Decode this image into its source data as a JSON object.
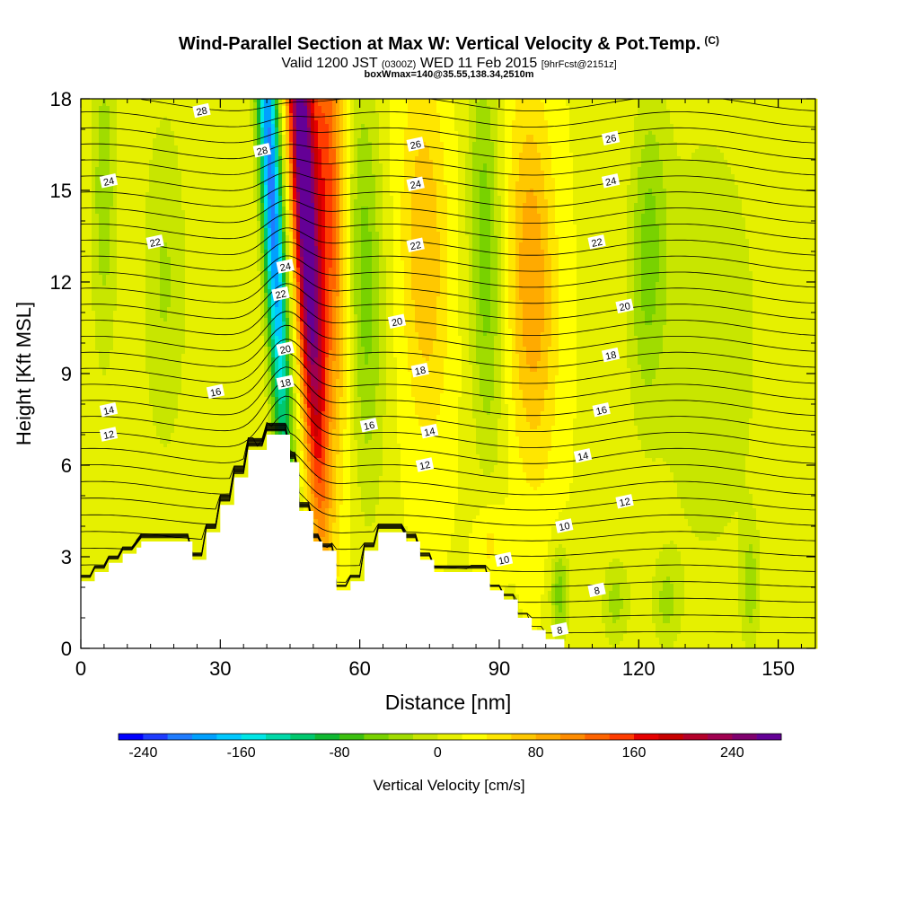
{
  "header": {
    "title": "Wind-Parallel Section at Max W: Vertical Velocity & Pot.Temp.",
    "copyright": "(C)",
    "valid_a": "Valid 1200 JST",
    "valid_b": "(0300Z)",
    "valid_c": "WED 11 Feb 2015",
    "valid_d": "[9hrFcst@2151z]",
    "box": "boxWmax=140@35.55,138.34,2510m"
  },
  "chart_data": {
    "type": "heatmap",
    "xlabel": "Distance [nm]",
    "ylabel": "Height [Kft MSL]",
    "xlim": [
      0,
      158
    ],
    "ylim": [
      0,
      18
    ],
    "x_ticks": [
      "0",
      "30",
      "60",
      "90",
      "120",
      "150"
    ],
    "x_tick_values": [
      0,
      30,
      60,
      90,
      120,
      150
    ],
    "y_ticks": [
      "0",
      "3",
      "6",
      "9",
      "12",
      "15",
      "18"
    ],
    "y_tick_values": [
      0,
      3,
      6,
      9,
      12,
      15,
      18
    ],
    "colorbar": {
      "label": "Vertical Velocity [cm/s]",
      "tick_labels": [
        "-240",
        "-160",
        "-80",
        "0",
        "80",
        "160",
        "240"
      ],
      "tick_values": [
        -240,
        -160,
        -80,
        0,
        80,
        160,
        240
      ],
      "range": [
        -260,
        280
      ],
      "colors": [
        "#0000ff",
        "#1e3cff",
        "#1f7cff",
        "#00a0ff",
        "#00c8ff",
        "#00e6e6",
        "#00d8a8",
        "#00c86e",
        "#10b832",
        "#3cc010",
        "#78d200",
        "#a0dc00",
        "#c8e600",
        "#e6f000",
        "#ffff00",
        "#ffe600",
        "#ffc800",
        "#ffaa00",
        "#ff8c00",
        "#ff6400",
        "#ff3c00",
        "#e60000",
        "#c80000",
        "#b4002a",
        "#a00050",
        "#80006e",
        "#640096"
      ]
    },
    "theta_contour_labels": [
      {
        "text": "28",
        "x": 26,
        "y": 17.6
      },
      {
        "text": "28",
        "x": 39,
        "y": 16.3
      },
      {
        "text": "26",
        "x": 72,
        "y": 16.5
      },
      {
        "text": "26",
        "x": 114,
        "y": 16.7
      },
      {
        "text": "24",
        "x": 6,
        "y": 15.3
      },
      {
        "text": "24",
        "x": 72,
        "y": 15.2
      },
      {
        "text": "24",
        "x": 114,
        "y": 15.3
      },
      {
        "text": "22",
        "x": 16,
        "y": 13.3
      },
      {
        "text": "22",
        "x": 72,
        "y": 13.2
      },
      {
        "text": "22",
        "x": 111,
        "y": 13.3
      },
      {
        "text": "24",
        "x": 44,
        "y": 12.5
      },
      {
        "text": "22",
        "x": 43,
        "y": 11.6
      },
      {
        "text": "20",
        "x": 68,
        "y": 10.7
      },
      {
        "text": "20",
        "x": 117,
        "y": 11.2
      },
      {
        "text": "20",
        "x": 44,
        "y": 9.8
      },
      {
        "text": "18",
        "x": 44,
        "y": 8.7
      },
      {
        "text": "18",
        "x": 73,
        "y": 9.1
      },
      {
        "text": "18",
        "x": 114,
        "y": 9.6
      },
      {
        "text": "16",
        "x": 29,
        "y": 8.4
      },
      {
        "text": "16",
        "x": 62,
        "y": 7.3
      },
      {
        "text": "16",
        "x": 112,
        "y": 7.8
      },
      {
        "text": "14",
        "x": 6,
        "y": 7.8
      },
      {
        "text": "14",
        "x": 75,
        "y": 7.1
      },
      {
        "text": "14",
        "x": 108,
        "y": 6.3
      },
      {
        "text": "12",
        "x": 6,
        "y": 7.0
      },
      {
        "text": "12",
        "x": 74,
        "y": 6.0
      },
      {
        "text": "12",
        "x": 117,
        "y": 4.8
      },
      {
        "text": "10",
        "x": 104,
        "y": 4.0
      },
      {
        "text": "10",
        "x": 91,
        "y": 2.9
      },
      {
        "text": "8",
        "x": 111,
        "y": 1.9
      },
      {
        "text": "8",
        "x": 103,
        "y": 0.6
      }
    ],
    "w_field": {
      "anomalies": [
        {
          "x": 41,
          "y": 15,
          "v": -230,
          "sx": 2.3,
          "sy": 10,
          "slope": -0.32
        },
        {
          "x": 48,
          "y": 15,
          "v": 270,
          "sx": 2.6,
          "sy": 10,
          "slope": -0.32
        },
        {
          "x": 53,
          "y": 15,
          "v": 130,
          "sx": 4,
          "sy": 8,
          "slope": -0.15
        },
        {
          "x": 61,
          "y": 12,
          "v": -70,
          "sx": 4,
          "sy": 7,
          "slope": -0.1
        },
        {
          "x": 74,
          "y": 13,
          "v": 60,
          "sx": 5,
          "sy": 6,
          "slope": -0.1
        },
        {
          "x": 87,
          "y": 13,
          "v": -70,
          "sx": 3.5,
          "sy": 7,
          "slope": -0.1
        },
        {
          "x": 97,
          "y": 12,
          "v": 80,
          "sx": 5,
          "sy": 6,
          "slope": -0.1
        },
        {
          "x": 122,
          "y": 13,
          "v": -60,
          "sx": 4,
          "sy": 5,
          "slope": 0.1
        },
        {
          "x": 5,
          "y": 15,
          "v": -50,
          "sx": 3,
          "sy": 6,
          "slope": 0
        },
        {
          "x": 18,
          "y": 12,
          "v": -40,
          "sx": 5,
          "sy": 6,
          "slope": 0
        },
        {
          "x": 135,
          "y": 10,
          "v": -35,
          "sx": 12,
          "sy": 8,
          "slope": 0
        },
        {
          "x": 103,
          "y": 1.8,
          "v": -70,
          "sx": 2,
          "sy": 1.5,
          "slope": 0
        },
        {
          "x": 88,
          "y": 3.5,
          "v": 35,
          "sx": 3,
          "sy": 1.5,
          "slope": 0
        },
        {
          "x": 115,
          "y": 1.5,
          "v": -45,
          "sx": 3,
          "sy": 1.5,
          "slope": 0
        },
        {
          "x": 126,
          "y": 1.5,
          "v": -40,
          "sx": 3,
          "sy": 1.5,
          "slope": 0
        },
        {
          "x": 144,
          "y": 2,
          "v": -45,
          "sx": 2,
          "sy": 2,
          "slope": 0
        },
        {
          "x": 40,
          "y": 4.5,
          "v": -25,
          "sx": 6,
          "sy": 2,
          "slope": 0
        }
      ]
    },
    "terrain": [
      [
        0,
        0
      ],
      [
        0,
        2.2
      ],
      [
        3,
        2.2
      ],
      [
        3,
        2.5
      ],
      [
        6,
        2.5
      ],
      [
        6,
        2.8
      ],
      [
        9,
        2.8
      ],
      [
        9,
        3.1
      ],
      [
        12,
        3.1
      ],
      [
        12,
        3.3
      ],
      [
        13,
        3.3
      ],
      [
        13,
        3.5
      ],
      [
        24,
        3.5
      ],
      [
        24,
        2.9
      ],
      [
        27,
        2.9
      ],
      [
        27,
        3.8
      ],
      [
        30,
        3.8
      ],
      [
        30,
        4.7
      ],
      [
        33,
        4.7
      ],
      [
        33,
        5.6
      ],
      [
        36,
        5.6
      ],
      [
        36,
        6.5
      ],
      [
        40,
        6.5
      ],
      [
        40,
        7.0
      ],
      [
        45,
        7.0
      ],
      [
        45,
        6.1
      ],
      [
        47,
        6.1
      ],
      [
        47,
        4.5
      ],
      [
        50,
        4.5
      ],
      [
        50,
        3.5
      ],
      [
        52,
        3.5
      ],
      [
        52,
        3.2
      ],
      [
        55,
        3.2
      ],
      [
        55,
        1.9
      ],
      [
        58,
        1.9
      ],
      [
        58,
        2.2
      ],
      [
        61,
        2.2
      ],
      [
        61,
        3.2
      ],
      [
        64,
        3.2
      ],
      [
        64,
        3.8
      ],
      [
        70,
        3.8
      ],
      [
        70,
        3.5
      ],
      [
        73,
        3.5
      ],
      [
        73,
        2.9
      ],
      [
        76,
        2.9
      ],
      [
        76,
        2.5
      ],
      [
        88,
        2.5
      ],
      [
        88,
        1.9
      ],
      [
        91,
        1.9
      ],
      [
        91,
        1.6
      ],
      [
        94,
        1.6
      ],
      [
        94,
        1.0
      ],
      [
        97,
        1.0
      ],
      [
        97,
        0.6
      ],
      [
        100,
        0.6
      ],
      [
        100,
        0.3
      ],
      [
        104,
        0.3
      ],
      [
        104,
        0
      ],
      [
        0,
        0
      ]
    ]
  }
}
